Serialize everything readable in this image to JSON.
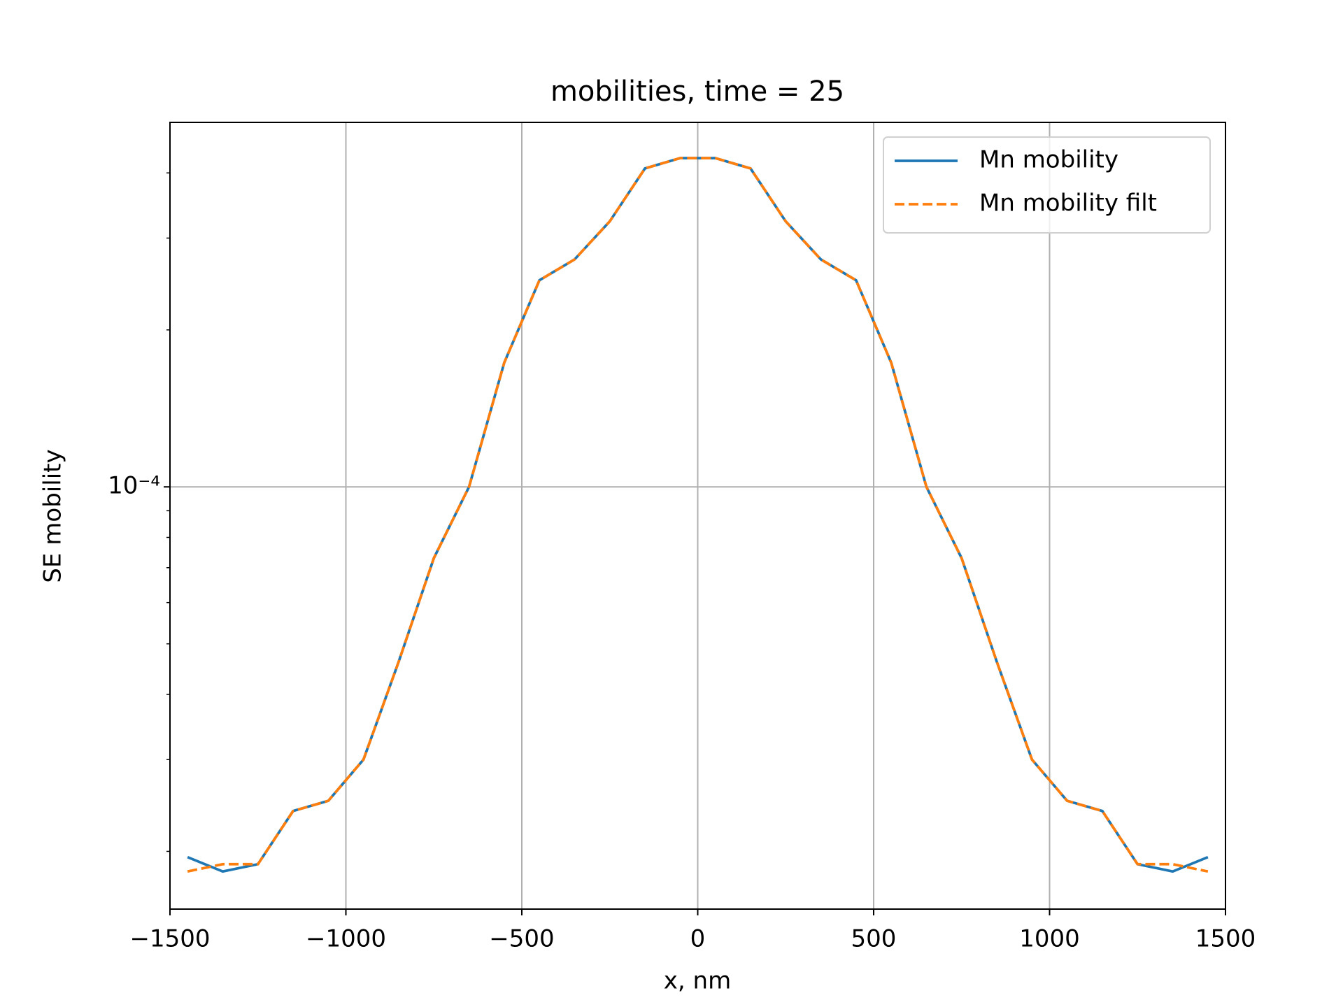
{
  "chart_data": {
    "type": "line",
    "title": "mobilities, time = 25",
    "xlabel": "x, nm",
    "ylabel": "SE mobility",
    "x": [
      -1450,
      -1350,
      -1250,
      -1150,
      -1050,
      -950,
      -850,
      -750,
      -650,
      -550,
      -450,
      -350,
      -250,
      -150,
      -50,
      50,
      150,
      250,
      350,
      450,
      550,
      650,
      750,
      850,
      950,
      1050,
      1150,
      1250,
      1350,
      1450
    ],
    "series": [
      {
        "name": "Mn mobility",
        "color": "#1f77b4",
        "linestyle": "solid",
        "values": [
          1.95e-05,
          1.83e-05,
          1.89e-05,
          2.39e-05,
          2.5e-05,
          3e-05,
          4.62e-05,
          7.3e-05,
          0.0001,
          0.000173,
          0.000249,
          0.000273,
          0.000323,
          0.000408,
          0.000427,
          0.000427,
          0.000408,
          0.000323,
          0.000273,
          0.000249,
          0.000173,
          0.0001,
          7.3e-05,
          4.62e-05,
          3e-05,
          2.5e-05,
          2.39e-05,
          1.89e-05,
          1.83e-05,
          1.95e-05
        ]
      },
      {
        "name": "Mn mobility filt",
        "color": "#ff7f0e",
        "linestyle": "dashed",
        "values": [
          1.83e-05,
          1.89e-05,
          1.89e-05,
          2.39e-05,
          2.5e-05,
          3e-05,
          4.62e-05,
          7.3e-05,
          0.0001,
          0.000173,
          0.000249,
          0.000273,
          0.000323,
          0.000408,
          0.000427,
          0.000427,
          0.000408,
          0.000323,
          0.000273,
          0.000249,
          0.000173,
          0.0001,
          7.3e-05,
          4.62e-05,
          3e-05,
          2.5e-05,
          2.39e-05,
          1.89e-05,
          1.89e-05,
          1.83e-05
        ]
      }
    ],
    "xlim": [
      -1500,
      1500
    ],
    "xticks": [
      {
        "value": -1500,
        "label": "−1500"
      },
      {
        "value": -1000,
        "label": "−1000"
      },
      {
        "value": -500,
        "label": "−500"
      },
      0,
      500,
      1000,
      1500
    ],
    "ylim": [
      1.55e-05,
      0.0005
    ],
    "ylog": true,
    "yticks": [
      {
        "value": 0.0001,
        "label": "10⁻⁴"
      }
    ],
    "yminorticks": [
      2e-05,
      3e-05,
      4e-05,
      5e-05,
      6e-05,
      7e-05,
      8e-05,
      9e-05,
      0.0002,
      0.0003,
      0.0004
    ],
    "grid": true,
    "legend": "upper right"
  }
}
